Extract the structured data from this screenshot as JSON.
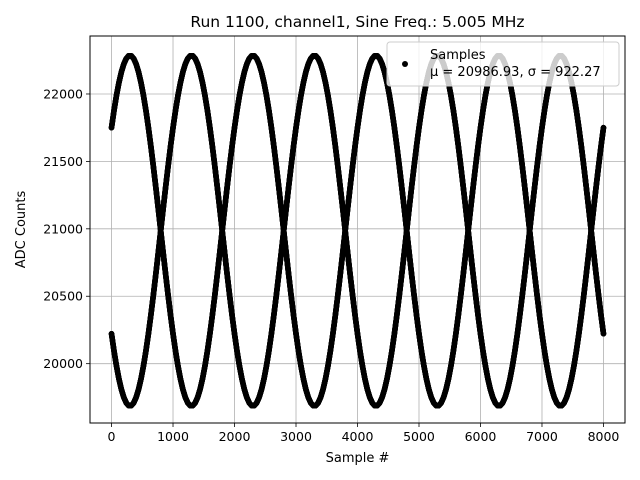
{
  "chart_data": {
    "type": "scatter",
    "title": "Run 1100, channel1, Sine Freq.: 5.005 MHz",
    "xlabel": "Sample #",
    "ylabel": "ADC Counts",
    "xlim": [
      -350,
      8350
    ],
    "ylim": [
      19560,
      22430
    ],
    "xticks": [
      0,
      1000,
      2000,
      3000,
      4000,
      5000,
      6000,
      7000,
      8000
    ],
    "yticks": [
      20000,
      20500,
      21000,
      21500,
      22000
    ],
    "grid": true,
    "legend": {
      "placement": "top-right",
      "entries": [
        "Samples",
        "μ = 20986.93, σ = 922.27"
      ]
    },
    "series": [
      {
        "name": "Samples",
        "color": "#000000",
        "sample_range": [
          0,
          8000
        ],
        "traces": [
          {
            "center": 20986,
            "amplitude": 1300,
            "period": 2000,
            "peak_at": 300
          },
          {
            "center": 20986,
            "amplitude": 1300,
            "period": 2000,
            "peak_at": 1300
          },
          {
            "center": 20986,
            "amplitude": 1300,
            "period": 2000,
            "peak_at": 2300
          },
          {
            "center": 20986,
            "amplitude": 1300,
            "period": 2000,
            "peak_at": 3300
          },
          {
            "center": 20986,
            "amplitude": 1300,
            "period": 2000,
            "peak_at": 4300
          },
          {
            "center": 20986,
            "amplitude": 1300,
            "period": 2000,
            "peak_at": 5300
          },
          {
            "center": 20986,
            "amplitude": 1300,
            "period": 2000,
            "peak_at": 6300
          },
          {
            "center": 20986,
            "amplitude": 1300,
            "period": 2000,
            "peak_at": 7300
          }
        ]
      }
    ]
  }
}
